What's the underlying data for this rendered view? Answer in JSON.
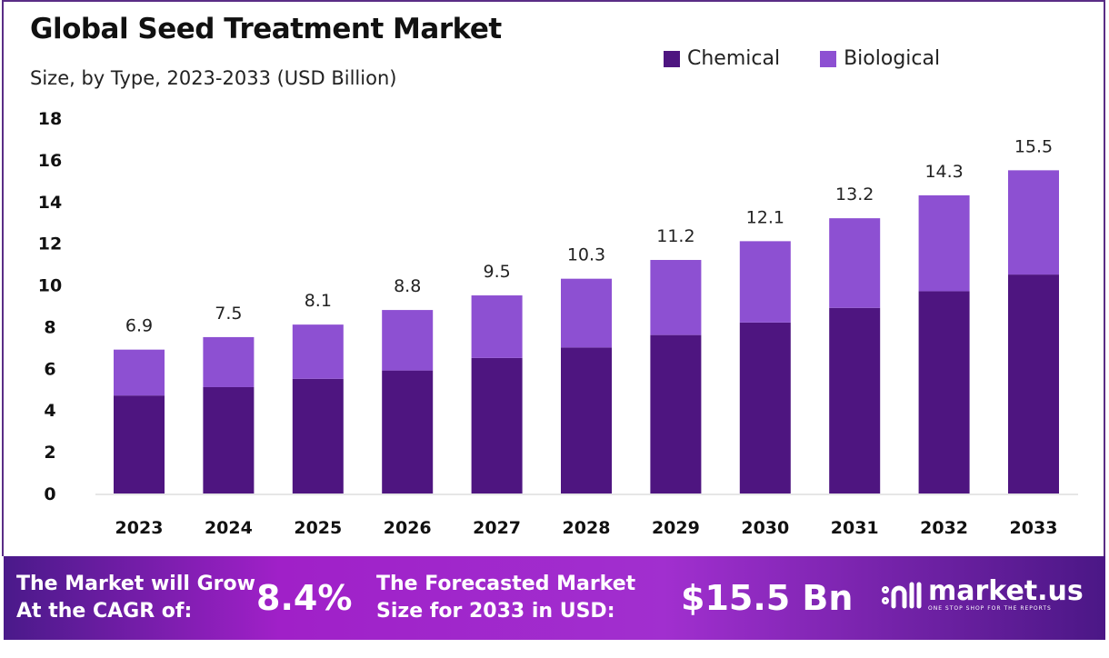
{
  "colors": {
    "chemical": "#4e1580",
    "biological": "#8d50d2",
    "frame": "#5a2d86"
  },
  "chart_data": {
    "type": "bar",
    "stacked": true,
    "title": "Global Seed Treatment Market",
    "subtitle": "Size, by Type, 2023-2033 (USD Billion)",
    "categories": [
      "2023",
      "2024",
      "2025",
      "2026",
      "2027",
      "2028",
      "2029",
      "2030",
      "2031",
      "2032",
      "2033"
    ],
    "series": [
      {
        "name": "Chemical",
        "values": [
          4.7,
          5.1,
          5.5,
          5.9,
          6.5,
          7.0,
          7.6,
          8.2,
          8.9,
          9.7,
          10.5
        ]
      },
      {
        "name": "Biological",
        "values": [
          2.2,
          2.4,
          2.6,
          2.9,
          3.0,
          3.3,
          3.6,
          3.9,
          4.3,
          4.6,
          5.0
        ]
      }
    ],
    "totals": [
      "6.9",
      "7.5",
      "8.1",
      "8.8",
      "9.5",
      "10.3",
      "11.2",
      "12.1",
      "13.2",
      "14.3",
      "15.5"
    ],
    "yticks": [
      "0",
      "2",
      "4",
      "6",
      "8",
      "10",
      "12",
      "14",
      "16",
      "18"
    ],
    "ylim": [
      0,
      18
    ],
    "grid": false,
    "legend": "top-right"
  },
  "footer": {
    "cagr_line1": "The Market will Grow",
    "cagr_line2": "At the CAGR of:",
    "cagr_value": "8.4%",
    "forecast_line1": "The Forecasted Market",
    "forecast_line2": "Size for 2033 in USD:",
    "forecast_value": "$15.5 Bn",
    "logo_name": "market.us",
    "logo_tagline": "ONE STOP SHOP FOR THE REPORTS"
  }
}
